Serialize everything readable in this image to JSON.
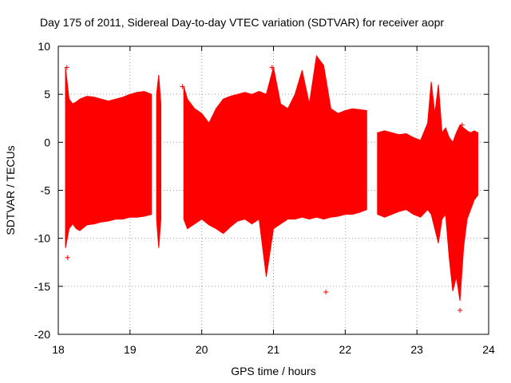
{
  "chart_data": {
    "type": "errorbar",
    "title": "Day 175 of 2011, Sidereal Day-to-day VTEC variation (SDTVAR) for receiver aopr",
    "xlabel": "GPS time / hours",
    "ylabel": "SDTVAR / TECUs",
    "xlim": [
      18,
      24
    ],
    "ylim": [
      -20,
      10
    ],
    "xticks": [
      "18",
      "19",
      "20",
      "21",
      "22",
      "23",
      "24"
    ],
    "yticks": [
      "10",
      "5",
      "0",
      "-5",
      "-10",
      "-15",
      "-20"
    ],
    "grid": true,
    "series": [
      {
        "name": "SDTVAR",
        "color": "#ff0000",
        "segments": [
          {
            "x": [
              18.1,
              18.15,
              18.2,
              18.25,
              18.3,
              18.4,
              18.5,
              18.6,
              18.7,
              18.8,
              18.9,
              19.0,
              19.1,
              19.2,
              19.3
            ],
            "lower": [
              -11.0,
              -9.0,
              -8.5,
              -9.0,
              -9.2,
              -8.6,
              -8.5,
              -8.3,
              -8.2,
              -8.0,
              -8.0,
              -7.8,
              -7.8,
              -7.7,
              -7.5
            ],
            "upper": [
              7.8,
              4.5,
              4.0,
              4.2,
              4.5,
              4.8,
              4.7,
              4.5,
              4.3,
              4.5,
              4.7,
              5.0,
              5.2,
              5.3,
              5.0
            ]
          },
          {
            "x": [
              19.37,
              19.4,
              19.43
            ],
            "lower": [
              -8.0,
              -11.0,
              -8.0
            ],
            "upper": [
              5.0,
              7.0,
              4.0
            ]
          },
          {
            "x": [
              19.75,
              19.8,
              19.9,
              20.0,
              20.1,
              20.2,
              20.3,
              20.4,
              20.5,
              20.6,
              20.7,
              20.8,
              20.9,
              21.0,
              21.1,
              21.2,
              21.3,
              21.4,
              21.5,
              21.6,
              21.7,
              21.8,
              21.9,
              22.0,
              22.1,
              22.2,
              22.3
            ],
            "lower": [
              -8.0,
              -9.0,
              -8.5,
              -8.0,
              -8.6,
              -9.0,
              -9.5,
              -8.8,
              -8.2,
              -8.0,
              -8.5,
              -8.0,
              -14.0,
              -9.0,
              -8.5,
              -8.0,
              -8.0,
              -7.8,
              -8.0,
              -7.8,
              -8.0,
              -7.8,
              -7.7,
              -7.5,
              -7.5,
              -7.3,
              -7.0
            ],
            "upper": [
              5.8,
              4.5,
              3.5,
              3.0,
              2.0,
              3.5,
              4.5,
              4.8,
              5.0,
              5.2,
              5.0,
              5.3,
              5.0,
              7.8,
              4.0,
              3.5,
              5.0,
              7.5,
              4.0,
              9.0,
              8.0,
              3.5,
              3.0,
              3.3,
              3.5,
              3.4,
              3.3
            ]
          },
          {
            "x": [
              22.45,
              22.55,
              22.65,
              22.75,
              22.85,
              22.95,
              23.05,
              23.15,
              23.2,
              23.25,
              23.3,
              23.35,
              23.4,
              23.45,
              23.5,
              23.55,
              23.6,
              23.65,
              23.7,
              23.75,
              23.8,
              23.85
            ],
            "lower": [
              -7.5,
              -7.8,
              -7.5,
              -7.2,
              -7.0,
              -7.5,
              -7.8,
              -7.0,
              -7.5,
              -9.0,
              -10.5,
              -8.0,
              -7.5,
              -12.0,
              -15.5,
              -14.0,
              -16.5,
              -11.0,
              -8.0,
              -7.0,
              -6.0,
              -5.5
            ],
            "upper": [
              1.0,
              1.2,
              1.0,
              0.8,
              0.9,
              0.5,
              0.2,
              2.0,
              6.3,
              3.0,
              6.0,
              1.0,
              1.5,
              0.5,
              0.0,
              1.0,
              1.8,
              1.5,
              1.2,
              1.0,
              1.2,
              1.0
            ]
          }
        ],
        "outliers": [
          [
            18.12,
            7.8
          ],
          [
            18.13,
            -12.0
          ],
          [
            19.73,
            5.8
          ],
          [
            20.98,
            7.8
          ],
          [
            21.73,
            -15.6
          ],
          [
            23.63,
            1.8
          ],
          [
            23.6,
            -17.5
          ]
        ]
      }
    ]
  }
}
